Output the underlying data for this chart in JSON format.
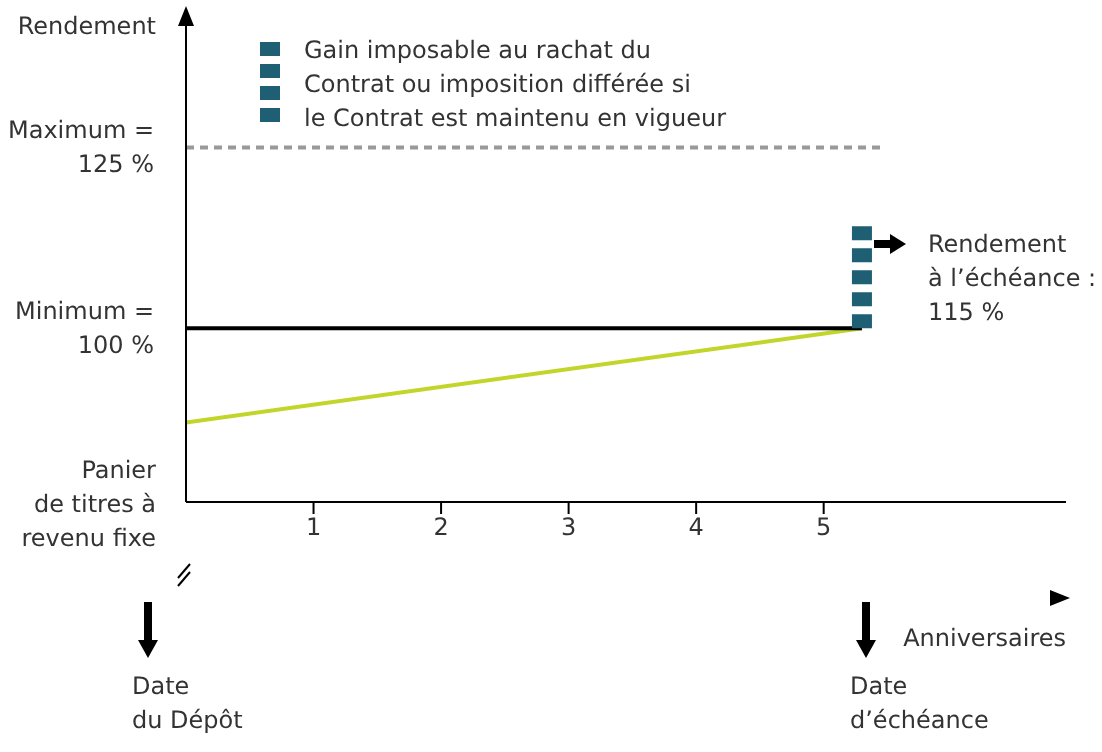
{
  "chart_data": {
    "type": "line",
    "ylabel": "Rendement",
    "xlabel": "Anniversaires",
    "xlim": [
      0,
      6.9
    ],
    "xticks": [
      1,
      2,
      3,
      4,
      5
    ],
    "ylim": [
      76,
      144
    ],
    "yticks": [
      {
        "value": 100,
        "label": "Minimum =\n100 %"
      },
      {
        "value": 125,
        "label": "Maximum =\n125 %"
      }
    ],
    "legend": "top",
    "grid": false,
    "marker": "none",
    "series": [
      {
        "x": [
          0,
          5.3
        ],
        "values": [
          87,
          100
        ],
        "color": "#c2d52a"
      },
      {
        "x": [
          0,
          5.3
        ],
        "values": [
          100,
          100
        ],
        "color": "#000000"
      },
      {
        "x": [
          0,
          5.45
        ],
        "values": [
          125,
          125
        ],
        "color": "#999999",
        "line_style": "dashed"
      },
      {
        "name": "Gain imposable au rachat du\nContrat ou imposition différée si\nle Contrat est maintenu en vigueur",
        "x": [
          5.3,
          5.3
        ],
        "values": [
          100,
          115
        ],
        "color": "#1f5f73",
        "line_style": "dotted"
      }
    ],
    "annotations": [
      "Panier\nde titres à\nrevenu fixe",
      "Rendement\nà l’échéance :\n115 %",
      "Date\ndu Dépôt",
      "Date\nd’échéance"
    ]
  }
}
